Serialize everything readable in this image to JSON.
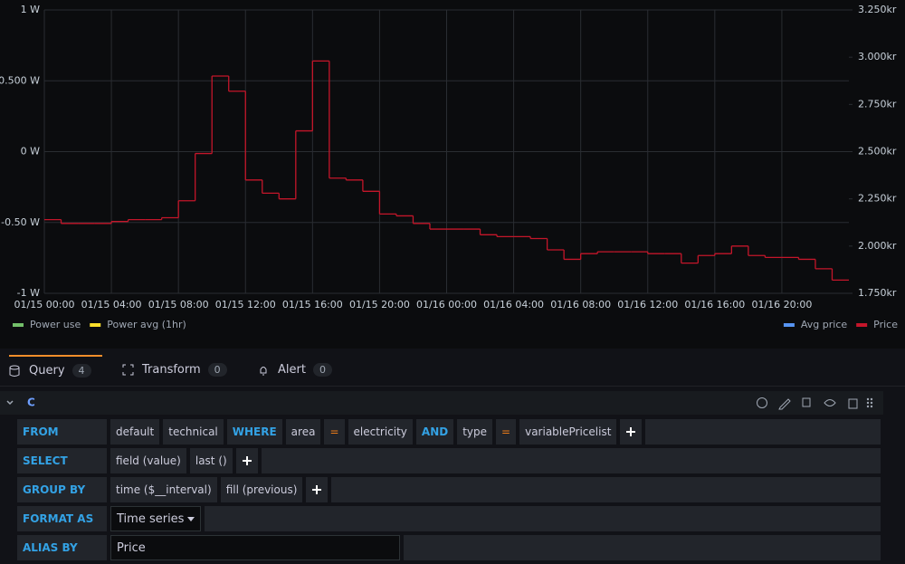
{
  "chart_data": {
    "type": "line",
    "step": true,
    "x": [
      "01/15 00:00",
      "01/15 01:00",
      "01/15 02:00",
      "01/15 03:00",
      "01/15 04:00",
      "01/15 05:00",
      "01/15 06:00",
      "01/15 07:00",
      "01/15 08:00",
      "01/15 09:00",
      "01/15 10:00",
      "01/15 11:00",
      "01/15 12:00",
      "01/15 13:00",
      "01/15 14:00",
      "01/15 15:00",
      "01/15 16:00",
      "01/15 17:00",
      "01/15 18:00",
      "01/15 19:00",
      "01/15 20:00",
      "01/15 21:00",
      "01/15 22:00",
      "01/15 23:00",
      "01/16 00:00",
      "01/16 01:00",
      "01/16 02:00",
      "01/16 03:00",
      "01/16 04:00",
      "01/16 05:00",
      "01/16 06:00",
      "01/16 07:00",
      "01/16 08:00",
      "01/16 09:00",
      "01/16 10:00",
      "01/16 11:00",
      "01/16 12:00",
      "01/16 13:00",
      "01/16 14:00",
      "01/16 15:00",
      "01/16 16:00",
      "01/16 17:00",
      "01/16 18:00",
      "01/16 19:00",
      "01/16 20:00",
      "01/16 21:00",
      "01/16 22:00",
      "01/16 23:00"
    ],
    "xlim": [
      "01/15 00:00",
      "01/17 00:00"
    ],
    "xticks": [
      "01/15 00:00",
      "01/15 04:00",
      "01/15 08:00",
      "01/15 12:00",
      "01/15 16:00",
      "01/15 20:00",
      "01/16 00:00",
      "01/16 04:00",
      "01/16 08:00",
      "01/16 12:00",
      "01/16 16:00",
      "01/16 20:00"
    ],
    "ylim": [
      -1,
      1
    ],
    "yticks": [
      {
        "value": -1,
        "label": "-1 W"
      },
      {
        "value": -0.5,
        "label": "-0.50 W"
      },
      {
        "value": 0,
        "label": "0 W"
      },
      {
        "value": 0.5,
        "label": "0.500 W"
      },
      {
        "value": 1,
        "label": "1 W"
      }
    ],
    "y2lim": [
      1.75,
      3.25
    ],
    "y2ticks": [
      {
        "value": 1.75,
        "label": "1.750kr"
      },
      {
        "value": 2,
        "label": "2.000kr"
      },
      {
        "value": 2.25,
        "label": "2.250kr"
      },
      {
        "value": 2.5,
        "label": "2.500kr"
      },
      {
        "value": 2.75,
        "label": "2.750kr"
      },
      {
        "value": 3,
        "label": "3.000kr"
      },
      {
        "value": 3.25,
        "label": "3.250kr"
      }
    ],
    "grid": true,
    "series": [
      {
        "name": "Power use",
        "color": "#73bf69",
        "values": [
          null,
          null,
          null,
          null,
          null,
          null,
          null,
          null,
          null,
          null,
          null,
          null,
          null,
          null,
          null,
          null,
          null,
          null,
          null,
          null,
          null,
          null,
          null,
          null,
          null,
          null,
          null,
          null,
          null,
          null,
          null,
          null,
          null,
          null,
          null,
          null,
          null,
          null,
          null,
          null,
          null,
          null,
          null,
          null,
          null,
          null,
          null,
          null
        ]
      },
      {
        "name": "Power avg (1hr)",
        "color": "#fade2a",
        "values": [
          null,
          null,
          null,
          null,
          null,
          null,
          null,
          null,
          null,
          null,
          null,
          null,
          null,
          null,
          null,
          null,
          null,
          null,
          null,
          null,
          null,
          null,
          null,
          null,
          null,
          null,
          null,
          null,
          null,
          null,
          null,
          null,
          null,
          null,
          null,
          null,
          null,
          null,
          null,
          null,
          null,
          null,
          null,
          null,
          null,
          null,
          null,
          null
        ]
      },
      {
        "name": "Avg price",
        "color": "#5794f2",
        "axis": "y2",
        "values": [
          null,
          null,
          null,
          null,
          null,
          null,
          null,
          null,
          null,
          null,
          null,
          null,
          null,
          null,
          null,
          null,
          null,
          null,
          null,
          null,
          null,
          null,
          null,
          null,
          null,
          null,
          null,
          null,
          null,
          null,
          null,
          null,
          null,
          null,
          null,
          null,
          null,
          null,
          null,
          null,
          null,
          null,
          null,
          null,
          null,
          null,
          null,
          null
        ]
      },
      {
        "name": "Price",
        "color": "#c4162a",
        "axis": "y2",
        "values": [
          2.14,
          2.12,
          2.12,
          2.12,
          2.13,
          2.14,
          2.14,
          2.15,
          2.24,
          2.49,
          2.9,
          2.82,
          2.35,
          2.28,
          2.25,
          2.61,
          2.98,
          2.36,
          2.35,
          2.29,
          2.17,
          2.16,
          2.12,
          2.09,
          2.09,
          2.09,
          2.06,
          2.05,
          2.05,
          2.04,
          1.98,
          1.93,
          1.96,
          1.97,
          1.97,
          1.97,
          1.96,
          1.96,
          1.91,
          1.95,
          1.96,
          2.0,
          1.95,
          1.94,
          1.94,
          1.93,
          1.88,
          1.82
        ]
      }
    ]
  },
  "tabs": [
    {
      "label": "Query",
      "count": 4
    },
    {
      "label": "Transform",
      "count": 0
    },
    {
      "label": "Alert",
      "count": 0
    }
  ],
  "query": {
    "ref": "C",
    "rows": [
      {
        "label": "FROM",
        "tokens": [
          {
            "text": "default"
          },
          {
            "text": "technical"
          },
          {
            "text": "WHERE",
            "style": "keyword"
          },
          {
            "text": "area"
          },
          {
            "text": "=",
            "style": "operator"
          },
          {
            "text": "electricity"
          },
          {
            "text": "AND",
            "style": "keyword"
          },
          {
            "text": "type"
          },
          {
            "text": "=",
            "style": "operator"
          },
          {
            "text": "variablePricelist"
          }
        ],
        "add": true
      },
      {
        "label": "SELECT",
        "tokens": [
          {
            "text": "field (value)"
          },
          {
            "text": "last ()"
          }
        ],
        "add": true
      },
      {
        "label": "GROUP BY",
        "tokens": [
          {
            "text": "time ($__interval)"
          },
          {
            "text": "fill (previous)"
          }
        ],
        "add": true
      },
      {
        "label": "FORMAT AS",
        "tokens": [
          {
            "text": "Time series",
            "style": "select"
          }
        ],
        "add": false
      },
      {
        "label": "ALIAS BY",
        "tokens": [
          {
            "text": "Price",
            "style": "input"
          }
        ],
        "add": false
      }
    ]
  }
}
